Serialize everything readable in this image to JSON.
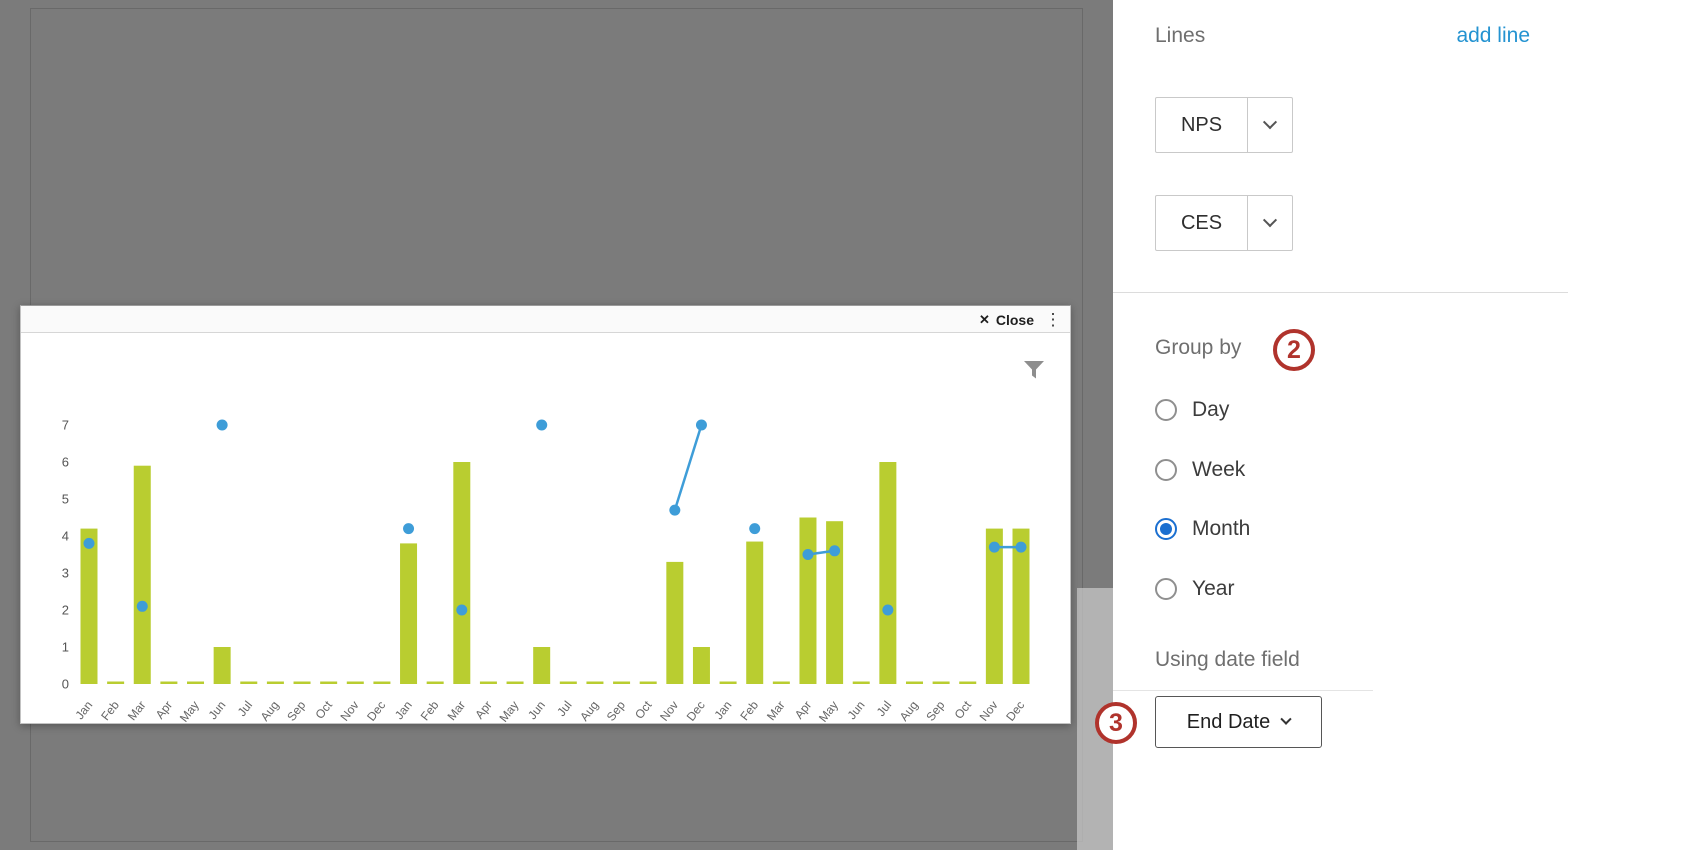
{
  "overlay": {
    "background_color": "#7b7b7b"
  },
  "chart_panel": {
    "close_icon": "✕",
    "close_label": "Close",
    "kebab_icon": "⋮",
    "filter_icon_name": "filter-funnel-icon"
  },
  "chart_data": {
    "type": "bar",
    "title": "",
    "xlabel": "",
    "ylabel": "",
    "categories": [
      "Jan",
      "Feb",
      "Mar",
      "Apr",
      "May",
      "Jun",
      "Jul",
      "Aug",
      "Sep",
      "Oct",
      "Nov",
      "Dec",
      "Jan",
      "Feb",
      "Mar",
      "Apr",
      "May",
      "Jun",
      "Jul",
      "Aug",
      "Sep",
      "Oct",
      "Nov",
      "Dec",
      "Jan",
      "Feb",
      "Mar",
      "Apr",
      "May",
      "Jun",
      "Jul",
      "Aug",
      "Sep",
      "Oct",
      "Nov",
      "Dec"
    ],
    "ylim": [
      0,
      7
    ],
    "yticks": [
      0,
      1,
      2,
      3,
      4,
      5,
      6,
      7
    ],
    "grid": false,
    "legend": "none",
    "series": [
      {
        "name": "NPS",
        "type": "bar",
        "color": "#b9cd30",
        "values": [
          4.2,
          0,
          5.9,
          0,
          0,
          1,
          0,
          0,
          0,
          0,
          0,
          0,
          3.8,
          0,
          6,
          0,
          0,
          1,
          0,
          0,
          0,
          0,
          3.3,
          1,
          0,
          3.85,
          0,
          4.5,
          4.4,
          0,
          6,
          0,
          0,
          0,
          4.2,
          4.2
        ]
      },
      {
        "name": "CES",
        "type": "line-scatter",
        "color": "#3e9dd8",
        "values": [
          3.8,
          null,
          2.1,
          null,
          null,
          7,
          null,
          null,
          null,
          null,
          null,
          null,
          4.2,
          null,
          2,
          null,
          null,
          7,
          null,
          null,
          null,
          null,
          4.7,
          7,
          null,
          4.2,
          null,
          3.5,
          3.6,
          null,
          2,
          null,
          null,
          null,
          3.7,
          3.7
        ]
      }
    ]
  },
  "sidebar": {
    "lines_label": "Lines",
    "add_line_label": "add line",
    "line_items": [
      {
        "label": "NPS"
      },
      {
        "label": "CES"
      }
    ],
    "group_by": {
      "label": "Group by",
      "annotation": "2",
      "options": [
        {
          "label": "Day",
          "selected": false
        },
        {
          "label": "Week",
          "selected": false
        },
        {
          "label": "Month",
          "selected": true
        },
        {
          "label": "Year",
          "selected": false
        }
      ]
    },
    "using_date_field_label": "Using date field",
    "date_field": {
      "label": "End Date",
      "annotation": "3"
    }
  },
  "colors": {
    "bar": "#b9cd30",
    "line": "#3e9dd8",
    "accent_blue": "#2493d1",
    "radio_selected": "#1b6fd0",
    "annotation_red": "#b0332c",
    "overlay_gray": "#7b7b7b"
  }
}
